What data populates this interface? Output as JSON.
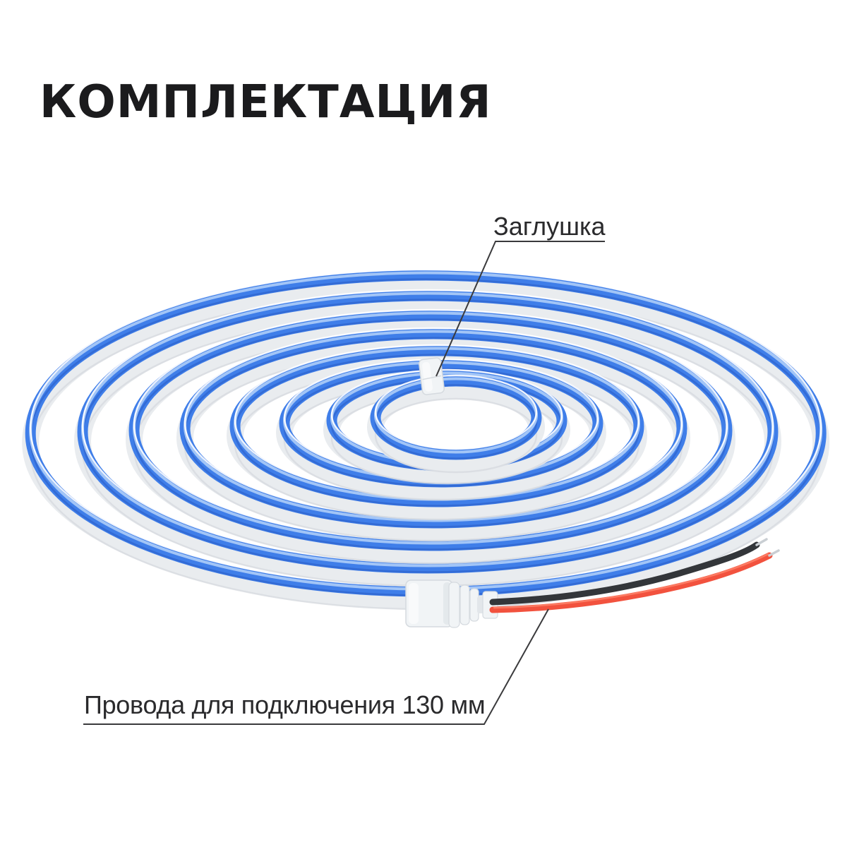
{
  "title": "КОМПЛЕКТАЦИЯ",
  "labels": {
    "end_cap": "Заглушка",
    "wires": "Провода для подключения 130 мм"
  },
  "colors": {
    "background": "#ffffff",
    "title_text": "#1b1b1d",
    "label_text": "#2a2a2c",
    "leader_line": "#3a3a3c",
    "strip_glow_blue": "#3f7ee9",
    "strip_glow_blue_dark": "#2c5fc8",
    "strip_glow_blue_light": "#a8c9f8",
    "strip_body_white": "#e9ecef",
    "strip_body_shadow": "#d7dbe0",
    "strip_rim_white": "#ffffff",
    "connector_fill": "#f1f4f6",
    "connector_fill_light": "#fafbfc",
    "connector_shade": "#e2e6ea",
    "connector_stroke": "#d5dadf",
    "wire_black": "#33363a",
    "wire_red": "#f2523e",
    "wire_red_light": "#ff8a70",
    "wire_tip_silver": "#c9ced3"
  }
}
